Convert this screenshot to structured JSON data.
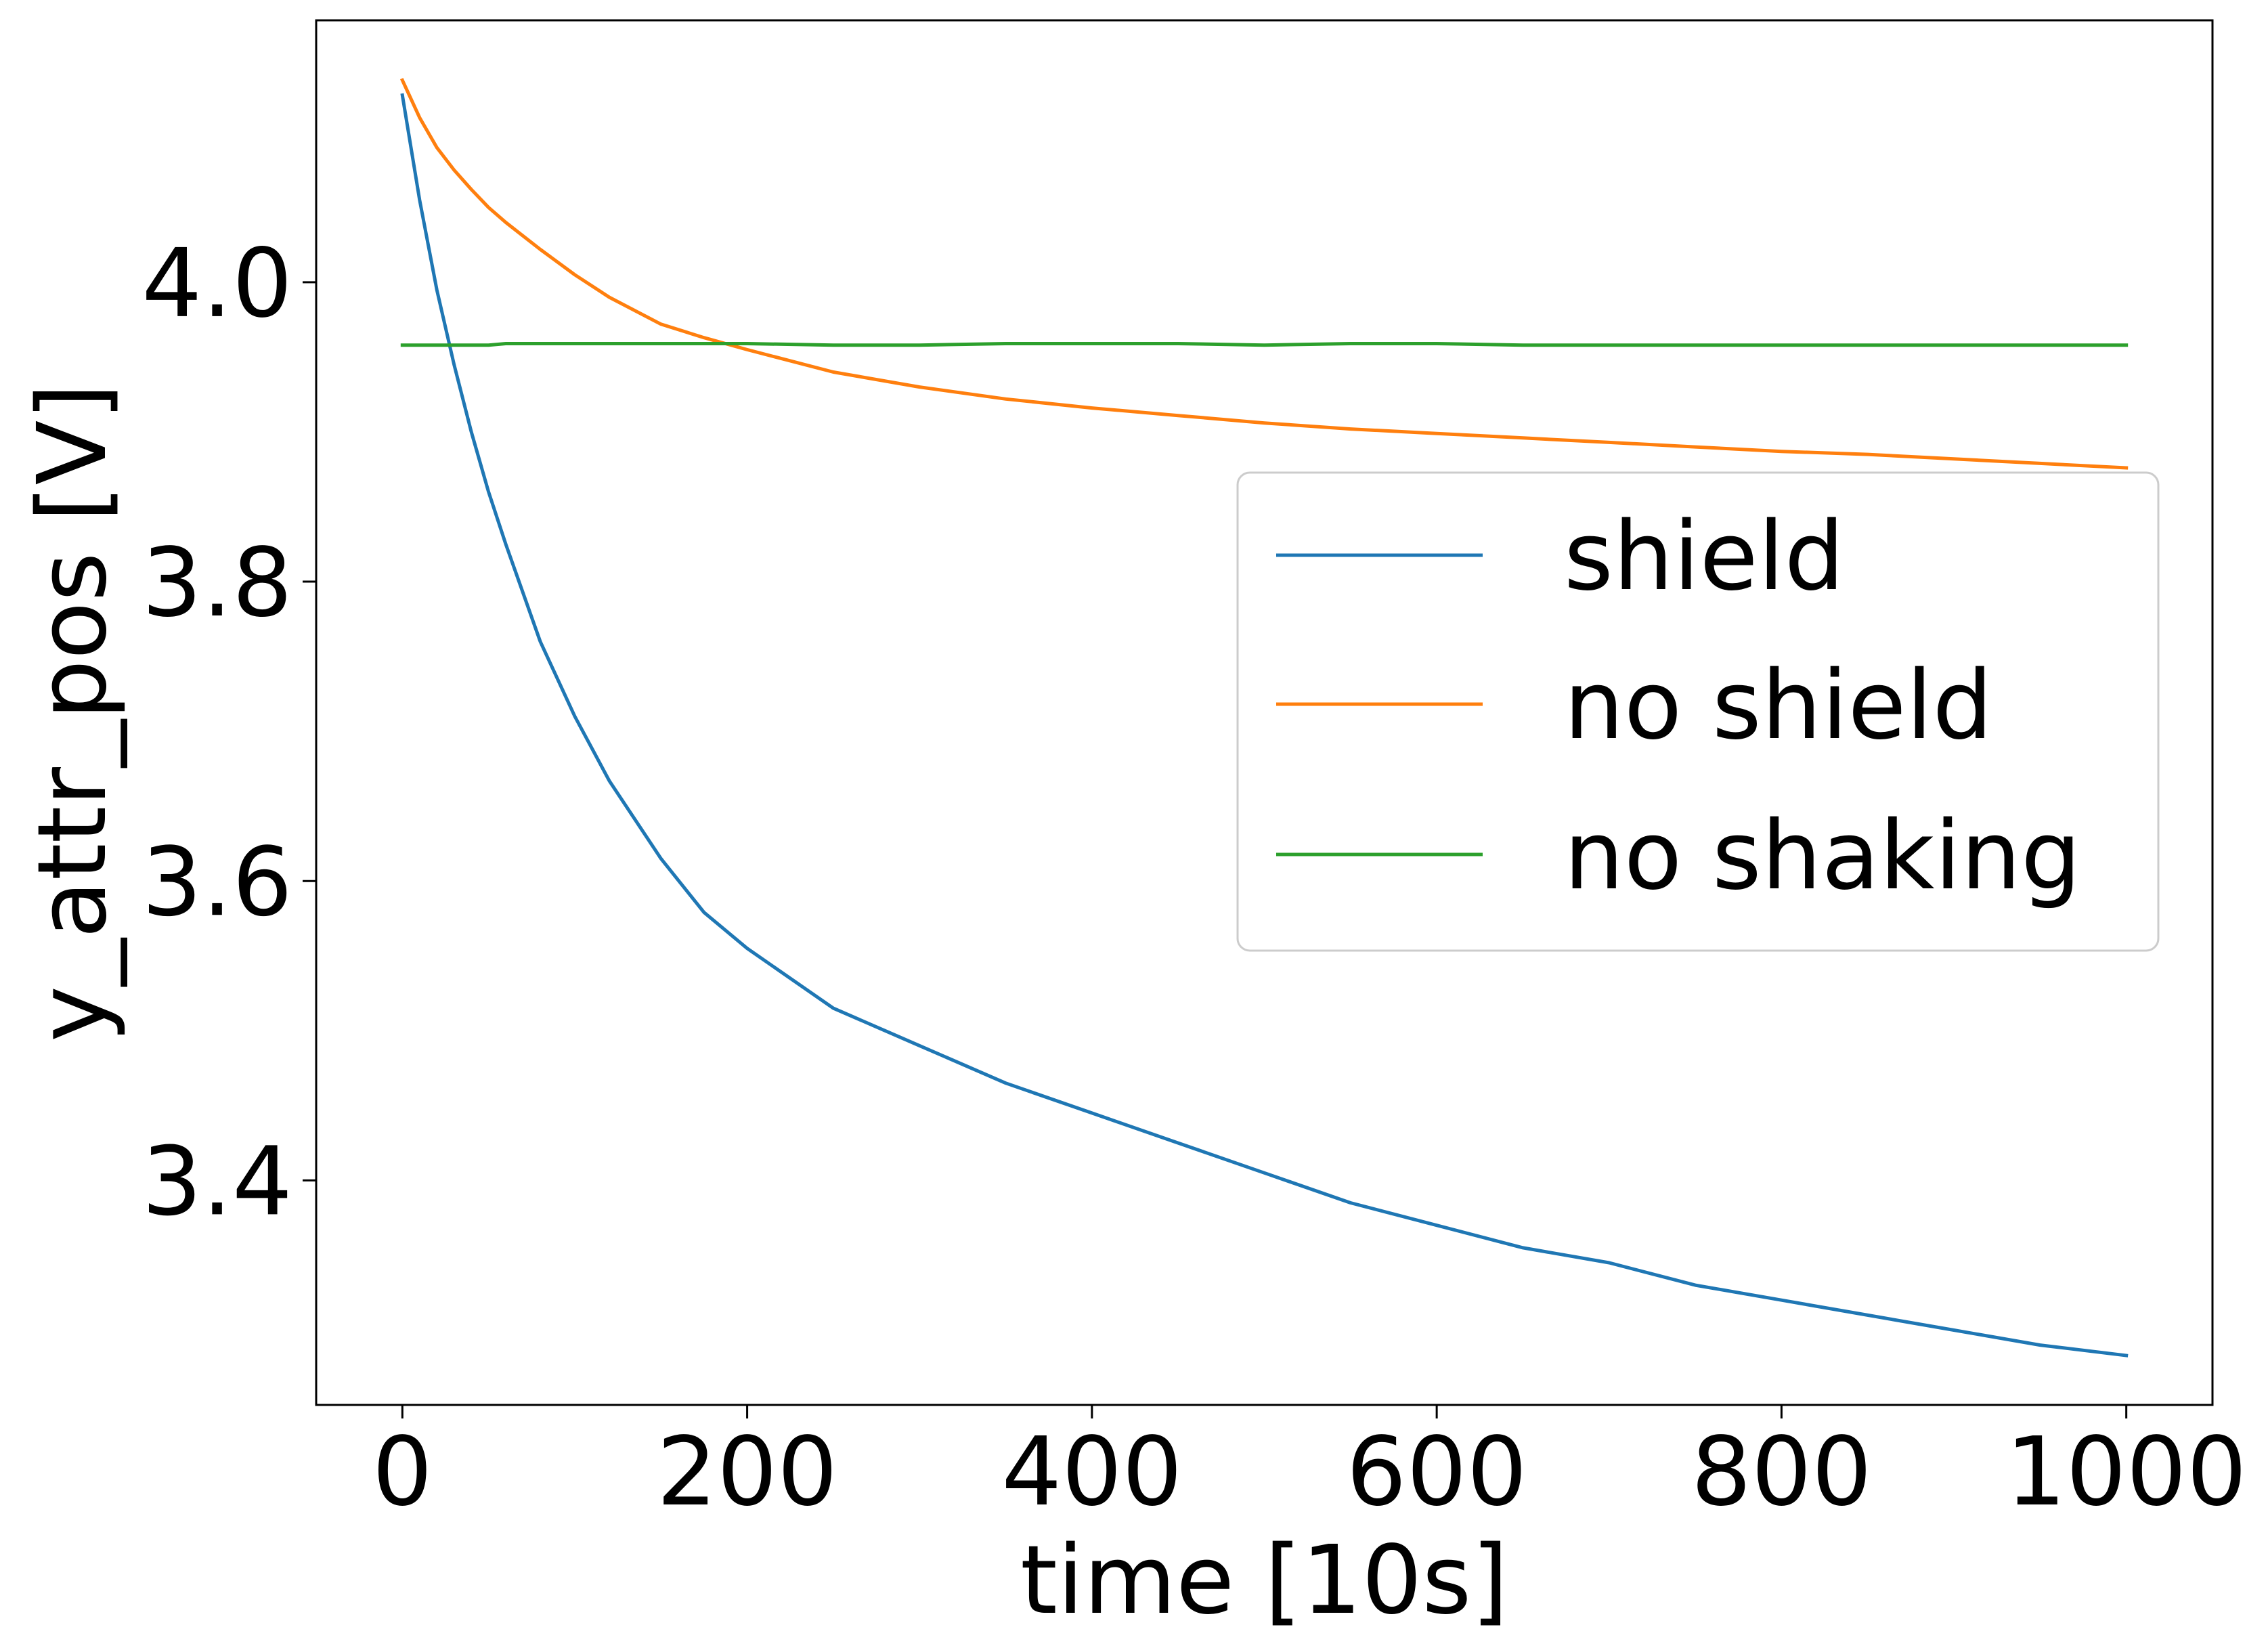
{
  "chart_data": {
    "type": "line",
    "title": "",
    "xlabel": "time [10s]",
    "ylabel": "y_attr_pos [V]",
    "xlim": [
      -50,
      1050
    ],
    "ylim": [
      3.25,
      4.175
    ],
    "xticks": [
      0,
      200,
      400,
      600,
      800,
      1000
    ],
    "xtick_labels": [
      "0",
      "200",
      "400",
      "600",
      "800",
      "1000"
    ],
    "yticks": [
      3.4,
      3.6,
      3.8,
      4.0
    ],
    "ytick_labels": [
      "3.4",
      "3.6",
      "3.8",
      "4.0"
    ],
    "grid": false,
    "legend_position": "center-right",
    "x": [
      0,
      10,
      20,
      30,
      40,
      50,
      60,
      80,
      100,
      120,
      150,
      175,
      200,
      250,
      300,
      350,
      400,
      450,
      500,
      550,
      600,
      650,
      700,
      750,
      800,
      850,
      900,
      950,
      1000
    ],
    "series": [
      {
        "name": "shield",
        "color": "#1f77b4",
        "values": [
          4.125,
          4.055,
          3.995,
          3.945,
          3.9,
          3.86,
          3.825,
          3.76,
          3.71,
          3.667,
          3.615,
          3.579,
          3.555,
          3.515,
          3.49,
          3.465,
          3.445,
          3.425,
          3.405,
          3.385,
          3.37,
          3.355,
          3.345,
          3.33,
          3.32,
          3.31,
          3.3,
          3.29,
          3.283
        ]
      },
      {
        "name": "no shield",
        "color": "#ff7f0e",
        "values": [
          4.135,
          4.11,
          4.09,
          4.075,
          4.062,
          4.05,
          4.04,
          4.022,
          4.005,
          3.99,
          3.972,
          3.963,
          3.955,
          3.94,
          3.93,
          3.922,
          3.916,
          3.911,
          3.906,
          3.902,
          3.899,
          3.896,
          3.893,
          3.89,
          3.887,
          3.885,
          3.882,
          3.879,
          3.876
        ]
      },
      {
        "name": "no shaking",
        "color": "#2ca02c",
        "values": [
          3.958,
          3.958,
          3.958,
          3.958,
          3.958,
          3.958,
          3.959,
          3.959,
          3.959,
          3.959,
          3.959,
          3.959,
          3.959,
          3.958,
          3.958,
          3.959,
          3.959,
          3.959,
          3.958,
          3.959,
          3.959,
          3.958,
          3.958,
          3.958,
          3.958,
          3.958,
          3.958,
          3.958,
          3.958
        ]
      }
    ]
  }
}
